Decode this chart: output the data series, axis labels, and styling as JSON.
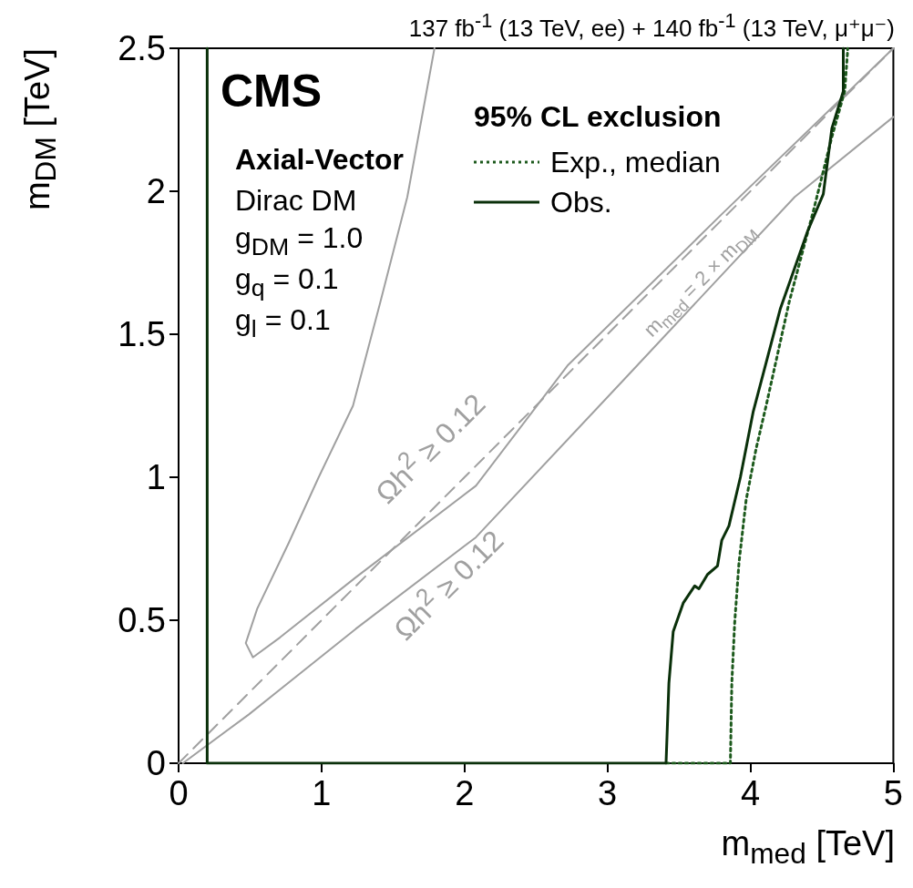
{
  "chart_data": {
    "type": "line",
    "title": "137 fb$^{-1}$ (13 TeV, ee) + 140 fb$^{-1}$ (13 TeV, μ⁺μ⁻)",
    "xlabel": "m$_{med}$ [TeV]",
    "ylabel": "m$_{DM}$ [TeV]",
    "legend_title": "95% CL exclusion",
    "xlim": [
      0,
      5
    ],
    "ylim": [
      0,
      2.5
    ],
    "xticks": [
      0,
      1,
      2,
      3,
      4,
      5
    ],
    "yticks": [
      0,
      0.5,
      1,
      1.5,
      2,
      2.5
    ],
    "grid": false,
    "legend": "top right",
    "marker": "none",
    "annotations": [
      "CMS",
      "Axial-Vector",
      "Dirac DM",
      "g$_{DM}$ = 1.0",
      "g$_{q}$ = 0.1",
      "g$_{l}$ = 0.1",
      "Ωh$^{2}$ ≥ 0.12",
      "Ωh$^{2}$ ≥ 0.12",
      "m$_{med}$ = 2 × m$_{DM}$"
    ],
    "series": [
      {
        "color": "#a0a0a0",
        "x": [
          1.79,
          1.6,
          1.41,
          1.22,
          0.98,
          0.77,
          0.55,
          0.47,
          0.52,
          0.71,
          1.24,
          2.08,
          2.72,
          3.8,
          5.0
        ],
        "values": [
          2.5,
          1.98,
          1.61,
          1.25,
          1.0,
          0.77,
          0.54,
          0.42,
          0.37,
          0.44,
          0.65,
          0.97,
          1.39,
          1.92,
          2.5
        ]
      },
      {
        "color": "#a0a0a0",
        "x": [
          0.03,
          0.49,
          1.24,
          2.08,
          3.15,
          4.31,
          5.0
        ],
        "values": [
          0,
          0.17,
          0.47,
          0.79,
          1.36,
          1.98,
          2.26
        ]
      },
      {
        "color": "#a0a0a0",
        "line_style": "dashed",
        "x": [
          0,
          5
        ],
        "values": [
          0,
          2.5
        ]
      },
      {
        "name": "Exp., median",
        "color": "#1d5a1d",
        "line_style": "dotted",
        "x": [
          3.41,
          3.86,
          3.87,
          3.89,
          3.92,
          3.97,
          4.04,
          4.11,
          4.27,
          4.44,
          4.57,
          4.66,
          4.68,
          4.68
        ],
        "values": [
          0,
          0,
          0.28,
          0.49,
          0.7,
          0.92,
          1.1,
          1.25,
          1.61,
          1.93,
          2.19,
          2.35,
          2.49,
          2.5
        ]
      },
      {
        "name": "Obs.",
        "color": "#0a300a",
        "line_style": "solid",
        "x": [
          0.2,
          0.2,
          3.41,
          3.43,
          3.46,
          3.53,
          3.61,
          3.64,
          3.7,
          3.77,
          3.8,
          3.85,
          3.93,
          4.02,
          4.21,
          4.4,
          4.51,
          4.57,
          4.65,
          4.65
        ],
        "values": [
          2.5,
          0,
          0,
          0.28,
          0.46,
          0.56,
          0.62,
          0.61,
          0.66,
          0.69,
          0.78,
          0.83,
          1.0,
          1.23,
          1.59,
          1.86,
          1.99,
          2.22,
          2.35,
          2.5
        ]
      }
    ]
  }
}
